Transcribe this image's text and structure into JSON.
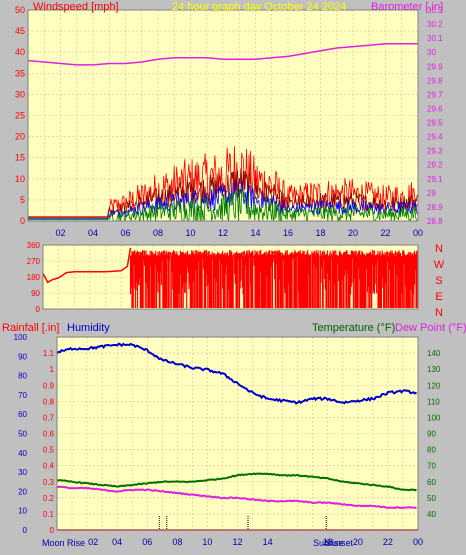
{
  "header": {
    "left_label": "Windspeed [mph]",
    "center_label": "24 hour graph day   October 24 2024",
    "right_label": "Barometer [.in]"
  },
  "colors": {
    "plot_bg": "#ffffc0",
    "grid": "#f4b0a0",
    "frame": "#808080",
    "wind": "#ff0000",
    "gust_dark": "#8b0000",
    "wind_blue": "#0000ff",
    "wind_green": "#008000",
    "baro": "#e020e0",
    "dir": "#ff0000",
    "humidity": "#0000cc",
    "temp": "#007000",
    "dew": "#e020e0",
    "rain": "#ff0000",
    "title_yellow": "#ffff00"
  },
  "x_ticks": [
    "02",
    "04",
    "06",
    "08",
    "10",
    "12",
    "14",
    "16",
    "18",
    "20",
    "22",
    "00"
  ],
  "chart_data": [
    {
      "type": "line",
      "name": "wind-barometer",
      "xlabel": "",
      "ylabel_left": "Windspeed [mph]",
      "ylabel_right": "Barometer [.in]",
      "x_ticks": [
        "02",
        "04",
        "06",
        "08",
        "10",
        "12",
        "14",
        "16",
        "18",
        "20",
        "22",
        "00"
      ],
      "ylim_left": [
        0,
        50
      ],
      "yticks_left": [
        "50",
        "45",
        "40",
        "35",
        "30",
        "25",
        "20",
        "15",
        "10",
        "5",
        "0"
      ],
      "ylim_right": [
        28.8,
        30.3
      ],
      "yticks_right": [
        "30.3",
        "30.2",
        "30.1",
        "30",
        "29.9",
        "29.8",
        "29.7",
        "29.6",
        "29.5",
        "29.4",
        "29.3",
        "29.2",
        "29.1",
        "29",
        "28.9",
        "28.8"
      ],
      "series": [
        {
          "name": "Windspeed",
          "axis": "left",
          "x": [
            0,
            4.9,
            5,
            6,
            8,
            10,
            12,
            13,
            14,
            15,
            16,
            18,
            20,
            22,
            24
          ],
          "y": [
            1,
            1,
            3,
            4,
            7,
            9,
            10,
            12,
            9,
            8,
            5,
            6,
            6,
            5,
            6
          ]
        },
        {
          "name": "Barometer",
          "axis": "right",
          "x": [
            0,
            1,
            2,
            3,
            4,
            5,
            6,
            7,
            8,
            9,
            10,
            11,
            12,
            13,
            14,
            15,
            16,
            17,
            18,
            19,
            20,
            21,
            22,
            23,
            24
          ],
          "y": [
            29.94,
            29.93,
            29.92,
            29.91,
            29.91,
            29.92,
            29.92,
            29.93,
            29.95,
            29.96,
            29.96,
            29.96,
            29.95,
            29.95,
            29.95,
            29.96,
            29.97,
            29.99,
            30.01,
            30.03,
            30.04,
            30.05,
            30.06,
            30.06,
            30.06
          ]
        }
      ]
    },
    {
      "type": "line",
      "name": "wind-direction",
      "xlabel": "",
      "ylim": [
        0,
        360
      ],
      "yticks": [
        "360",
        "270",
        "180",
        "90",
        "0"
      ],
      "compass_labels": [
        "N",
        "W",
        "S",
        "E",
        "N"
      ],
      "series": [
        {
          "name": "Wind Direction",
          "x": [
            0,
            0.3,
            0.6,
            1,
            1.5,
            2,
            3,
            4,
            5,
            5.4,
            5.6,
            6
          ],
          "y": [
            200,
            150,
            165,
            175,
            205,
            210,
            210,
            210,
            215,
            240,
            345,
            0
          ]
        }
      ]
    },
    {
      "type": "line",
      "name": "rain-humidity-temperature",
      "xlabel": "",
      "labels": [
        "Rainfall [.in]",
        "Humidity",
        "Temperature (°F)",
        "Dew Point (°F)"
      ],
      "ylim_humidity": [
        0,
        100
      ],
      "yticks_humidity": [
        "100",
        "90",
        "80",
        "70",
        "60",
        "50",
        "40",
        "30",
        "20",
        "10",
        "0"
      ],
      "ylim_rain": [
        0,
        1.2
      ],
      "yticks_rain": [
        "1.1",
        "1",
        "0.9",
        "0.8",
        "0.7",
        "0.6",
        "0.5",
        "0.4",
        "0.3",
        "0.2",
        "0.1",
        "0"
      ],
      "ylim_temp": [
        30,
        150
      ],
      "yticks_temp": [
        "140",
        "130",
        "120",
        "110",
        "100",
        "90",
        "80",
        "70",
        "60",
        "50",
        "40"
      ],
      "series": [
        {
          "name": "Humidity",
          "axis": "humidity",
          "x": [
            0,
            1,
            2,
            3,
            4,
            5,
            6,
            7,
            8,
            9,
            10,
            11,
            12,
            13,
            14,
            15,
            16,
            17,
            18,
            19,
            20,
            21,
            22,
            23,
            24
          ],
          "y": [
            92,
            94,
            94,
            95,
            96,
            96,
            93,
            88,
            86,
            84,
            83,
            81,
            76,
            71,
            68,
            67,
            66,
            68,
            68,
            66,
            67,
            68,
            71,
            72,
            71
          ]
        },
        {
          "name": "Temperature",
          "axis": "temp",
          "x": [
            0,
            1,
            2,
            3,
            4,
            5,
            6,
            7,
            8,
            9,
            10,
            11,
            12,
            13,
            14,
            15,
            16,
            17,
            18,
            19,
            20,
            21,
            22,
            23,
            24
          ],
          "y": [
            61,
            60,
            59,
            58,
            57,
            58,
            59,
            60,
            60,
            60,
            61,
            62,
            64,
            65,
            65,
            64,
            64,
            63,
            62,
            60,
            59,
            58,
            57,
            55,
            55
          ]
        },
        {
          "name": "Dew Point",
          "axis": "temp",
          "x": [
            0,
            1,
            2,
            3,
            4,
            5,
            6,
            7,
            8,
            9,
            10,
            11,
            12,
            13,
            14,
            15,
            16,
            17,
            18,
            19,
            20,
            21,
            22,
            23,
            24
          ],
          "y": [
            57,
            56,
            56,
            55,
            54,
            55,
            55,
            54,
            53,
            52,
            51,
            50,
            50,
            49,
            48,
            48,
            48,
            47,
            47,
            46,
            45,
            45,
            44,
            44,
            44
          ]
        },
        {
          "name": "Rainfall",
          "axis": "rain",
          "x": [
            0,
            24
          ],
          "y": [
            0,
            0
          ]
        }
      ],
      "event_labels": [
        "Moon Rise",
        "02",
        "Sunrise",
        "Sunset"
      ]
    }
  ]
}
